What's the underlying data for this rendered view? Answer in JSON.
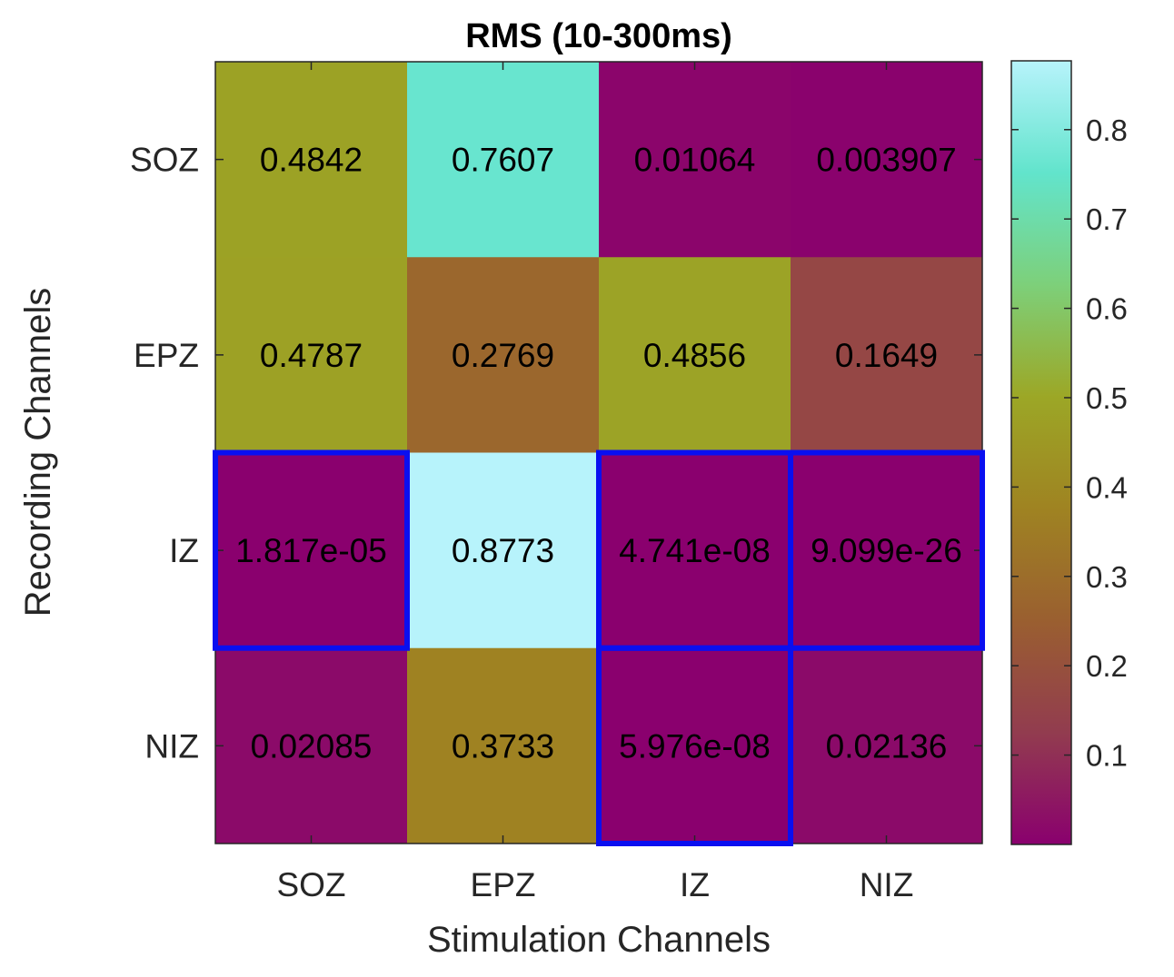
{
  "chart_data": {
    "type": "heatmap",
    "title": "RMS (10-300ms)",
    "xlabel": "Stimulation Channels",
    "ylabel": "Recording Channels",
    "x_categories": [
      "SOZ",
      "EPZ",
      "IZ",
      "NIZ"
    ],
    "y_categories": [
      "SOZ",
      "EPZ",
      "IZ",
      "NIZ"
    ],
    "values": [
      [
        0.4842,
        0.7607,
        0.01064,
        0.003907
      ],
      [
        0.4787,
        0.2769,
        0.4856,
        0.1649
      ],
      [
        1.817e-05,
        0.8773,
        4.741e-08,
        9.099e-26
      ],
      [
        0.02085,
        0.3733,
        5.976e-08,
        0.02136
      ]
    ],
    "cell_labels": [
      [
        "0.4842",
        "0.7607",
        "0.01064",
        "0.003907"
      ],
      [
        "0.4787",
        "0.2769",
        "0.4856",
        "0.1649"
      ],
      [
        "1.817e-05",
        "0.8773",
        "4.741e-08",
        "9.099e-26"
      ],
      [
        "0.02085",
        "0.3733",
        "5.976e-08",
        "0.02136"
      ]
    ],
    "highlighted_cells": [
      [
        2,
        0
      ],
      [
        2,
        2
      ],
      [
        2,
        3
      ],
      [
        3,
        2
      ]
    ],
    "highlight_color": "#0a0ff0",
    "colorbar": {
      "range": [
        0,
        0.877
      ],
      "ticks": [
        "0.1",
        "0.2",
        "0.3",
        "0.4",
        "0.5",
        "0.6",
        "0.7",
        "0.8"
      ],
      "colors": [
        "#8a006e",
        "#923c4f",
        "#9a5f30",
        "#9f8322",
        "#9ca726",
        "#7dd07a",
        "#62e4cc",
        "#b7f3fb"
      ]
    },
    "grid": false
  }
}
